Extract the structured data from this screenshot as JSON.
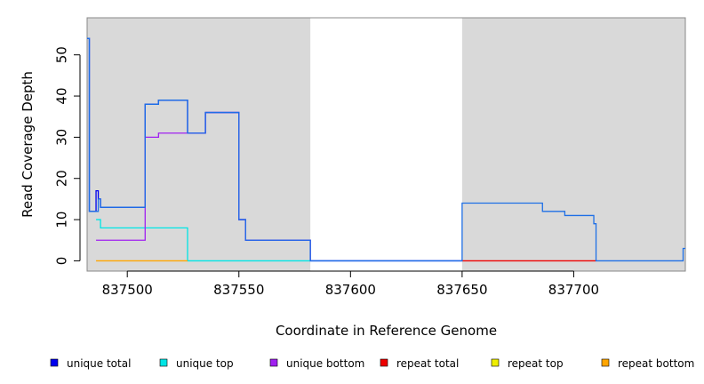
{
  "chart_data": {
    "type": "line",
    "xlabel": "Coordinate in Reference Genome",
    "ylabel": "Read Coverage Depth",
    "xlim": [
      837482,
      837750
    ],
    "ylim": [
      -2.5,
      59
    ],
    "x_ticks": [
      837500,
      837550,
      837600,
      837650,
      837700
    ],
    "x_tick_labels": [
      "837500",
      "837550",
      "837600",
      "837650",
      "837700"
    ],
    "y_ticks": [
      0,
      10,
      20,
      30,
      40,
      50
    ],
    "y_tick_labels": [
      "0",
      "10",
      "20",
      "30",
      "40",
      "50"
    ],
    "shaded_regions": [
      {
        "x0": 837482,
        "x1": 837582,
        "color": "#d9d9d9"
      },
      {
        "x0": 837650,
        "x1": 837750,
        "color": "#d9d9d9"
      }
    ],
    "grid": false,
    "legend_position": "bottom",
    "series": [
      {
        "name": "unique total",
        "color": "#0000ee",
        "step": true,
        "points": [
          [
            837482,
            54
          ],
          [
            837483,
            12
          ],
          [
            837486,
            17
          ],
          [
            837487,
            15
          ],
          [
            837488,
            13
          ],
          [
            837508,
            38
          ],
          [
            837514,
            39
          ],
          [
            837527,
            31
          ],
          [
            837535,
            36
          ],
          [
            837550,
            10
          ],
          [
            837553,
            5
          ],
          [
            837582,
            0
          ],
          [
            837650,
            0
          ]
        ]
      },
      {
        "name": "unique top",
        "color": "#00e5e5",
        "step": true,
        "points": [
          [
            837486,
            10
          ],
          [
            837488,
            8
          ],
          [
            837527,
            0
          ],
          [
            837582,
            0
          ]
        ]
      },
      {
        "name": "unique bottom",
        "color": "#a020f0",
        "step": true,
        "points": [
          [
            837486,
            5
          ],
          [
            837508,
            30
          ],
          [
            837514,
            31
          ],
          [
            837527,
            31
          ],
          [
            837535,
            36
          ],
          [
            837550,
            10
          ],
          [
            837553,
            5
          ],
          [
            837582,
            0
          ]
        ]
      },
      {
        "name": "repeat total",
        "color": "#ee0000",
        "step": true,
        "points": [
          [
            837650,
            0
          ],
          [
            837710,
            0
          ]
        ]
      },
      {
        "name": "repeat top",
        "color": "#eeee00",
        "step": true,
        "points": []
      },
      {
        "name": "repeat bottom",
        "color": "#ffa500",
        "step": true,
        "points": [
          [
            837486,
            0
          ],
          [
            837527,
            0
          ]
        ]
      },
      {
        "name": "",
        "color": "#1e6fe6",
        "step": true,
        "points": [
          [
            837482,
            54
          ],
          [
            837483,
            12
          ],
          [
            837487,
            15
          ],
          [
            837488,
            13
          ],
          [
            837508,
            38
          ],
          [
            837514,
            39
          ],
          [
            837527,
            31
          ],
          [
            837535,
            36
          ],
          [
            837550,
            10
          ],
          [
            837553,
            5
          ],
          [
            837582,
            0
          ],
          [
            837650,
            14
          ],
          [
            837686,
            12
          ],
          [
            837696,
            11
          ],
          [
            837709,
            9
          ],
          [
            837710,
            0
          ],
          [
            837749,
            3
          ],
          [
            837750,
            3
          ]
        ]
      }
    ],
    "legend": [
      {
        "label": "unique total",
        "color": "#0000ee"
      },
      {
        "label": "unique top",
        "color": "#00e5e5"
      },
      {
        "label": "unique bottom",
        "color": "#a020f0"
      },
      {
        "label": "repeat total",
        "color": "#ee0000"
      },
      {
        "label": "repeat top",
        "color": "#eeee00"
      },
      {
        "label": "repeat bottom",
        "color": "#ffa500"
      }
    ]
  }
}
